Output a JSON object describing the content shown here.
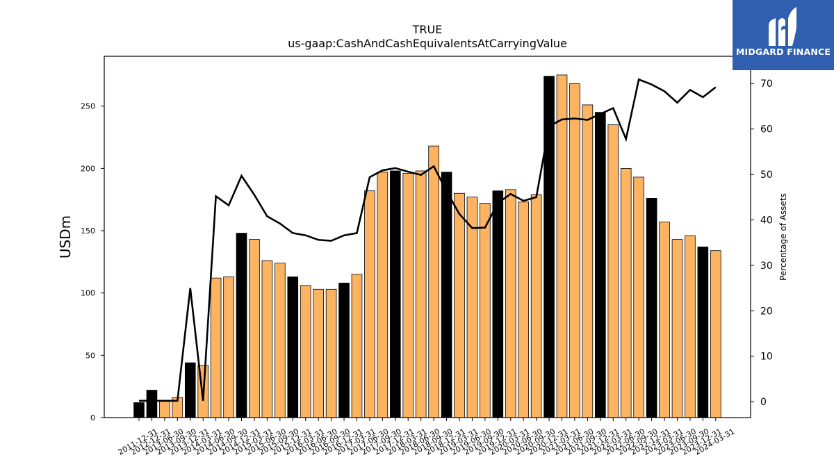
{
  "logo": {
    "text": "MIDGARD FINANCE"
  },
  "colors": {
    "bar_default": "#FDB462",
    "bar_highlight": "#000000",
    "line": "#000000",
    "logo_bg": "#2f5fae"
  },
  "chart_data": {
    "type": "bar",
    "title": "TRUE",
    "subtitle": "us-gaap:CashAndCashEquivalentsAtCarryingValue",
    "ylabel": "USDm",
    "y2label": "Percentage of Assets",
    "ylim": [
      0,
      290
    ],
    "y2lim": [
      -3.5,
      76
    ],
    "yticks": [
      0,
      50,
      100,
      150,
      200,
      250
    ],
    "y2ticks": [
      0,
      10,
      20,
      30,
      40,
      50,
      60,
      70
    ],
    "grid": false,
    "categories": [
      "2011-12-31",
      "2012-12-31",
      "2013-06-30",
      "2013-09-30",
      "2013-12-31",
      "2014-03-31",
      "2014-06-30",
      "2014-09-30",
      "2014-12-31",
      "2015-03-31",
      "2015-06-30",
      "2015-09-30",
      "2015-12-31",
      "2016-03-31",
      "2016-06-30",
      "2016-09-30",
      "2016-12-31",
      "2017-03-31",
      "2017-06-30",
      "2017-09-30",
      "2017-12-31",
      "2018-03-31",
      "2018-06-30",
      "2018-09-30",
      "2018-12-31",
      "2019-03-31",
      "2019-06-30",
      "2019-09-30",
      "2019-12-31",
      "2020-03-31",
      "2020-06-30",
      "2020-09-30",
      "2020-12-31",
      "2021-03-31",
      "2021-06-30",
      "2021-09-30",
      "2021-12-31",
      "2022-03-31",
      "2022-06-30",
      "2022-09-30",
      "2022-12-31",
      "2023-03-31",
      "2023-06-30",
      "2023-09-30",
      "2023-12-31",
      "2024-03-31"
    ],
    "series": [
      {
        "type": "bar",
        "values": [
          12,
          22,
          13,
          16,
          44,
          42,
          112,
          113,
          148,
          143,
          126,
          124,
          113,
          106,
          103,
          103,
          108,
          115,
          182,
          197,
          198,
          196,
          198,
          218,
          197,
          180,
          177,
          172,
          182,
          183,
          173,
          179,
          274,
          275,
          268,
          251,
          245,
          235,
          200,
          193,
          176,
          157,
          143,
          146,
          137,
          134
        ],
        "highlight": [
          true,
          true,
          false,
          false,
          true,
          false,
          false,
          false,
          true,
          false,
          false,
          false,
          true,
          false,
          false,
          false,
          true,
          false,
          false,
          false,
          true,
          false,
          false,
          false,
          true,
          false,
          false,
          false,
          true,
          false,
          false,
          false,
          true,
          false,
          false,
          false,
          true,
          false,
          false,
          false,
          true,
          false,
          false,
          false,
          true,
          false
        ]
      },
      {
        "type": "line",
        "axis": "secondary",
        "values": [
          0.2,
          0.2,
          0.2,
          0.2,
          25,
          0.2,
          45.2,
          43.2,
          49.7,
          45.5,
          40.8,
          39.2,
          37.1,
          36.6,
          35.6,
          35.4,
          36.6,
          37.1,
          49.4,
          50.9,
          51.4,
          50.6,
          49.9,
          51.8,
          46.3,
          41.3,
          38.2,
          38.3,
          43.7,
          45.7,
          44.2,
          45,
          60.6,
          62.1,
          62.3,
          62,
          63.3,
          64.6,
          57.8,
          70.9,
          69.8,
          68.3,
          65.8,
          68.6,
          67,
          69.2
        ]
      }
    ]
  }
}
